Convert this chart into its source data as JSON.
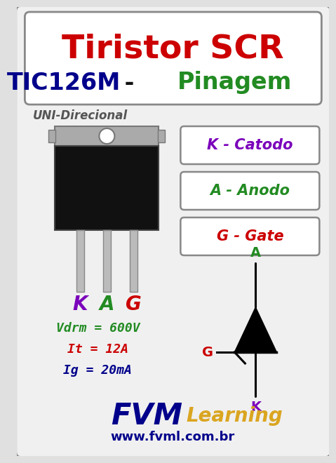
{
  "bg_color": "#e0e0e0",
  "inner_bg": "#f0f0f0",
  "title_line1": "Tiristor SCR",
  "title_color": "#cc0000",
  "title_line2_part1": "TIC126M",
  "title_line2_part1_color": "#00008B",
  "title_line2_part2": " - ",
  "title_line2_part2_color": "#111111",
  "title_line2_part3": "Pinagem",
  "title_line2_part3_color": "#228B22",
  "uni_text": "UNI-Direcional",
  "uni_color": "#555555",
  "pin_labels": [
    "K",
    "A",
    "G"
  ],
  "pin_colors": [
    "#7B00BB",
    "#228B22",
    "#cc0000"
  ],
  "box_labels": [
    "K - Catodo",
    "A - Anodo",
    "G - Gate"
  ],
  "box_label_colors": [
    "#7B00BB",
    "#228B22",
    "#cc0000"
  ],
  "specs": [
    "Vdrm = 600V",
    "It = 12A",
    "Ig = 20mA"
  ],
  "spec_colors": [
    "#228B22",
    "#cc0000",
    "#00008B"
  ],
  "brand_fvm": "FVM",
  "brand_fvm_color": "#00008B",
  "brand_learning": "Learning",
  "brand_learning_color": "#DAA520",
  "website": "www.fvml.com.br",
  "website_color": "#00008B",
  "scr_color": "#000000",
  "gate_label": "G",
  "gate_color": "#cc0000",
  "anode_label": "A",
  "anode_color": "#228B22",
  "cathode_label": "K",
  "cathode_color": "#7B00BB",
  "tab_color": "#aaaaaa",
  "tab_edge": "#777777",
  "body_color": "#111111",
  "body_edge": "#444444",
  "pin_color": "#bbbbbb",
  "pin_edge": "#888888"
}
